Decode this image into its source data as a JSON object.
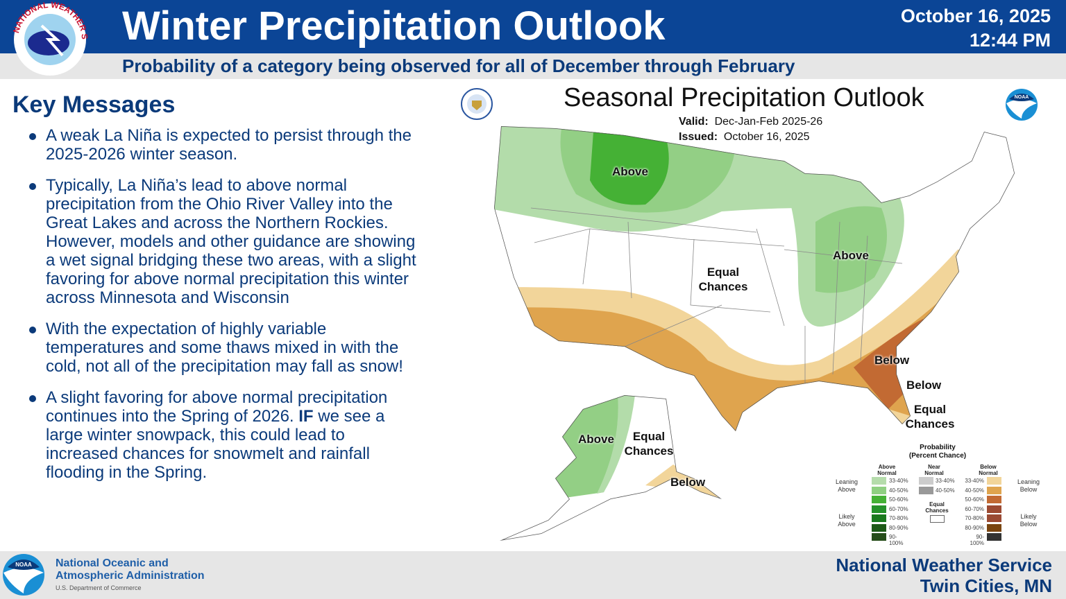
{
  "header": {
    "title": "Winter Precipitation Outlook",
    "date": "October 16, 2025",
    "time": "12:44 PM",
    "subtitle": "Probability of a category being observed for all of December through February",
    "logo_text": "NATIONAL WEATHER SERVICE"
  },
  "key_messages": {
    "heading": "Key Messages",
    "items": [
      "A weak La Niña is expected to persist through the 2025-2026 winter season.",
      "Typically, La Niña’s lead to above normal precipitation from the Ohio River Valley into the Great Lakes and across the Northern Rockies. However, models and other guidance are showing a wet signal bridging these two areas, with a slight favoring for above normal precipitation this winter across Minnesota and Wisconsin",
      "With the expectation of highly variable temperatures and some thaws mixed in with the cold, not all of the precipitation may fall as snow!"
    ],
    "last_item": {
      "before": "A slight favoring for above normal precipitation continues into the Spring of 2026. ",
      "bold": "IF",
      "after": " we see a large winter snowpack, this could lead to increased chances for snowmelt and rainfall flooding in the Spring."
    }
  },
  "map": {
    "title": "Seasonal Precipitation Outlook",
    "valid_label": "Valid:",
    "valid": "Dec-Jan-Feb 2025-26",
    "issued_label": "Issued:",
    "issued": "October 16, 2025",
    "labels": {
      "above_nw": "Above",
      "above_ohio": "Above",
      "equal_central": "Equal Chances",
      "below_se": "Below",
      "below_fl": "Below",
      "equal_fl": "Equal Chances",
      "above_ak": "Above",
      "equal_ak": "Equal Chances",
      "below_ak": "Below"
    },
    "colors": {
      "above_33_40": "#b3dcaa",
      "above_40_50": "#93cf85",
      "above_50_60": "#45b135",
      "below_33_40": "#f2d59a",
      "below_40_50": "#dfa44e",
      "below_50_60": "#c26a33"
    }
  },
  "legend": {
    "title": "Probability",
    "subtitle": "(Percent Chance)",
    "above_header": "Above Normal",
    "near_header": "Near Normal",
    "below_header": "Below Normal",
    "leaning_above": "Leaning Above",
    "likely_above": "Likely Above",
    "leaning_below": "Leaning Below",
    "likely_below": "Likely Below",
    "equal_chances": "Equal Chances",
    "above": [
      {
        "range": "33-40%",
        "color": "#b5dcab"
      },
      {
        "range": "40-50%",
        "color": "#8fcf81"
      },
      {
        "range": "50-60%",
        "color": "#45b135"
      },
      {
        "range": "60-70%",
        "color": "#25922a"
      },
      {
        "range": "70-80%",
        "color": "#1a7a1e"
      },
      {
        "range": "80-90%",
        "color": "#1d5a17"
      },
      {
        "range": "90-100%",
        "color": "#254d1a"
      }
    ],
    "near": [
      {
        "range": "33-40%",
        "color": "#cccccc"
      },
      {
        "range": "40-50%",
        "color": "#999999"
      }
    ],
    "below": [
      {
        "range": "33-40%",
        "color": "#f2d59a"
      },
      {
        "range": "40-50%",
        "color": "#dfa44e"
      },
      {
        "range": "50-60%",
        "color": "#c26a33"
      },
      {
        "range": "60-70%",
        "color": "#9c4a32"
      },
      {
        "range": "70-80%",
        "color": "#9a4a33"
      },
      {
        "range": "80-90%",
        "color": "#7a4510"
      },
      {
        "range": "90-100%",
        "color": "#333333"
      }
    ]
  },
  "footer": {
    "noaa_line1": "National Oceanic and",
    "noaa_line2": "Atmospheric Administration",
    "department": "U.S. Department of Commerce",
    "office_line1": "National Weather Service",
    "office_line2": "Twin Cities, MN",
    "noaa_logo_text": "NOAA"
  }
}
